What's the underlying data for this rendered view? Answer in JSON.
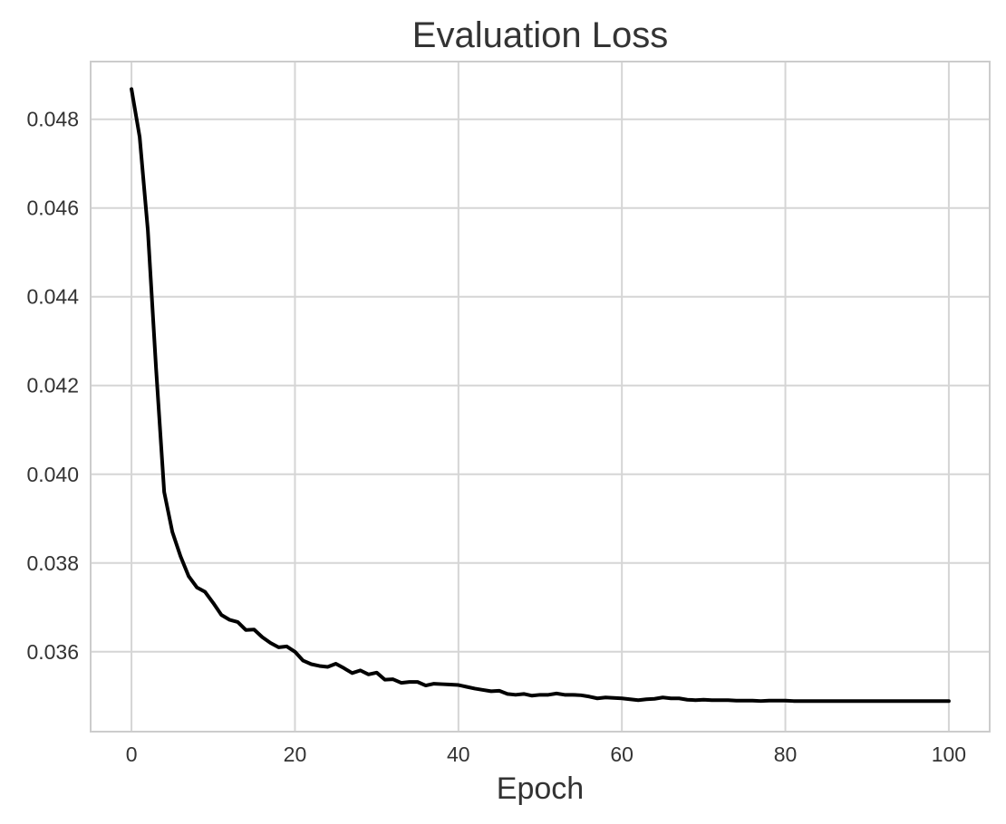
{
  "chart_data": {
    "type": "line",
    "title": "Evaluation Loss",
    "xlabel": "Epoch",
    "ylabel": "",
    "xlim": [
      -5,
      105
    ],
    "ylim": [
      0.0342,
      0.0493
    ],
    "xticks": [
      0,
      20,
      40,
      60,
      80,
      100
    ],
    "xtick_labels": [
      "0",
      "20",
      "40",
      "60",
      "80",
      "100"
    ],
    "yticks": [
      0.036,
      0.038,
      0.04,
      0.042,
      0.044,
      0.046,
      0.048
    ],
    "ytick_labels": [
      "0.036",
      "0.038",
      "0.040",
      "0.042",
      "0.044",
      "0.046",
      "0.048"
    ],
    "grid": true,
    "colors": {
      "line": "#000000",
      "grid": "#d5d5d5",
      "frame": "#cccccc",
      "text": "#333333"
    },
    "series": [
      {
        "x": [
          0,
          1,
          2,
          3,
          4,
          5,
          6,
          7,
          8,
          9,
          10,
          11,
          12,
          13,
          14,
          15,
          16,
          17,
          18,
          19,
          20,
          21,
          22,
          23,
          24,
          25,
          26,
          27,
          28,
          29,
          30,
          31,
          32,
          33,
          34,
          35,
          36,
          37,
          38,
          39,
          40,
          41,
          42,
          43,
          44,
          45,
          46,
          47,
          48,
          49,
          50,
          51,
          52,
          53,
          54,
          55,
          56,
          57,
          58,
          59,
          60,
          61,
          62,
          63,
          64,
          65,
          66,
          67,
          68,
          69,
          70,
          71,
          72,
          73,
          74,
          75,
          76,
          77,
          78,
          79,
          80,
          81,
          82,
          83,
          84,
          85,
          86,
          87,
          88,
          89,
          90,
          91,
          92,
          93,
          94,
          95,
          96,
          97,
          98,
          99,
          100
        ],
        "values": [
          0.04868,
          0.0476,
          0.0455,
          0.0424,
          0.0396,
          0.0387,
          0.03815,
          0.0377,
          0.03745,
          0.03735,
          0.0371,
          0.03683,
          0.03672,
          0.03667,
          0.03649,
          0.0365,
          0.03633,
          0.0362,
          0.0361,
          0.03612,
          0.036,
          0.0358,
          0.03572,
          0.03568,
          0.03566,
          0.03573,
          0.03563,
          0.03552,
          0.03558,
          0.03549,
          0.03553,
          0.03537,
          0.03538,
          0.0353,
          0.03532,
          0.03532,
          0.03524,
          0.03528,
          0.03527,
          0.03526,
          0.03525,
          0.03521,
          0.03517,
          0.03514,
          0.03511,
          0.03512,
          0.03505,
          0.03503,
          0.03505,
          0.03501,
          0.03503,
          0.03503,
          0.03506,
          0.03503,
          0.03503,
          0.03502,
          0.03499,
          0.03495,
          0.03497,
          0.03496,
          0.03495,
          0.03493,
          0.03491,
          0.03493,
          0.03494,
          0.03497,
          0.03495,
          0.03495,
          0.03492,
          0.03491,
          0.03492,
          0.03491,
          0.03491,
          0.03491,
          0.0349,
          0.0349,
          0.0349,
          0.03489,
          0.0349,
          0.0349,
          0.0349,
          0.03489,
          0.03489,
          0.03489,
          0.03489,
          0.03489,
          0.03489,
          0.03489,
          0.03489,
          0.03489,
          0.03489,
          0.03489,
          0.03489,
          0.03489,
          0.03489,
          0.03489,
          0.03489,
          0.03489,
          0.03489,
          0.03489,
          0.03489
        ]
      }
    ]
  }
}
